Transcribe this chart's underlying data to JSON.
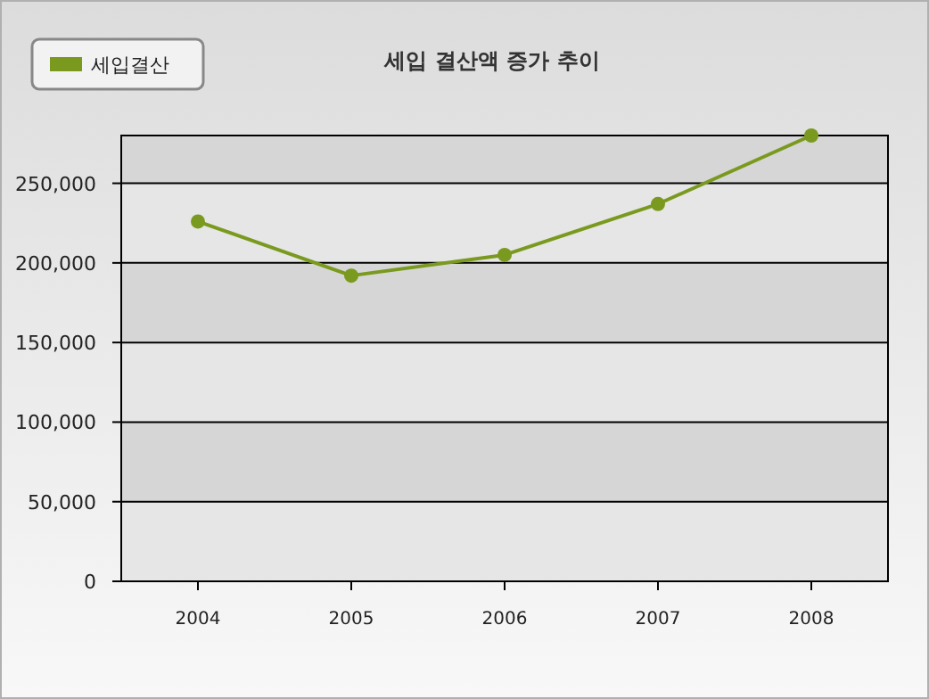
{
  "chart_data": {
    "type": "line",
    "title": "세입 결산액 증가 추이",
    "categories": [
      "2004",
      "2005",
      "2006",
      "2007",
      "2008"
    ],
    "series": [
      {
        "name": "세입결산",
        "color": "#7a9a1f",
        "values": [
          226000,
          192000,
          205000,
          237000,
          280000
        ]
      }
    ],
    "ylim": [
      0,
      280000
    ],
    "yticks": [
      {
        "value": 0,
        "label": "0"
      },
      {
        "value": 50000,
        "label": "50,000"
      },
      {
        "value": 100000,
        "label": "100,000"
      },
      {
        "value": 150000,
        "label": "150,000"
      },
      {
        "value": 200000,
        "label": "200,000"
      },
      {
        "value": 250000,
        "label": "250,000"
      }
    ],
    "grid": "y",
    "legend": "top left",
    "marker": "circle",
    "line_style": "solid"
  }
}
